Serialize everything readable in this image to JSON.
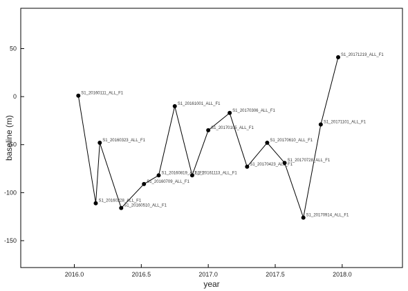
{
  "chart_data": {
    "type": "line",
    "title": "",
    "xlabel": "year",
    "ylabel": "baseline (m)",
    "xlim": [
      2015.6,
      2018.45
    ],
    "ylim": [
      -178,
      92
    ],
    "xticks": [
      2016.0,
      2016.5,
      2017.0,
      2017.5,
      2018.0
    ],
    "xtick_labels": [
      "2016.0",
      "2016.5",
      "2017.0",
      "2017.5",
      "2018.0"
    ],
    "yticks": [
      -150,
      -100,
      -50,
      0,
      50
    ],
    "ytick_labels": [
      "-150",
      "-100",
      "-50",
      "0",
      "50"
    ],
    "grid": false,
    "legend": "none",
    "line_color": "#000000",
    "marker_color": "#000000",
    "points": [
      {
        "x": 2016.03,
        "y": 1,
        "label": "S1_20160111_ALL_F1"
      },
      {
        "x": 2016.16,
        "y": -111,
        "label": "S1_20160228_ALL_F1"
      },
      {
        "x": 2016.19,
        "y": -48,
        "label": "S1_20160323_ALL_F1"
      },
      {
        "x": 2016.35,
        "y": -116,
        "label": "S1_20160510_ALL_F1"
      },
      {
        "x": 2016.52,
        "y": -91,
        "label": "S1_20160709_ALL_F1"
      },
      {
        "x": 2016.63,
        "y": -82,
        "label": "S1_20160819_ALL_F1"
      },
      {
        "x": 2016.75,
        "y": -10,
        "label": "S1_20161001_ALL_F1"
      },
      {
        "x": 2016.88,
        "y": -82,
        "label": "S1_20161113_ALL_F1"
      },
      {
        "x": 2017.0,
        "y": -35,
        "label": "S1_20170105_ALL_F1"
      },
      {
        "x": 2017.16,
        "y": -17,
        "label": "S1_20170306_ALL_F1"
      },
      {
        "x": 2017.29,
        "y": -73,
        "label": "S1_20170423_ALL_F1"
      },
      {
        "x": 2017.44,
        "y": -48,
        "label": "S1_20170610_ALL_F1"
      },
      {
        "x": 2017.57,
        "y": -69,
        "label": "S1_20170728_ALL_F1"
      },
      {
        "x": 2017.71,
        "y": -126,
        "label": "S1_20170914_ALL_F1"
      },
      {
        "x": 2017.84,
        "y": -29,
        "label": "S1_20171101_ALL_F1"
      },
      {
        "x": 2017.97,
        "y": 41,
        "label": "S1_20171219_ALL_F1"
      }
    ]
  }
}
